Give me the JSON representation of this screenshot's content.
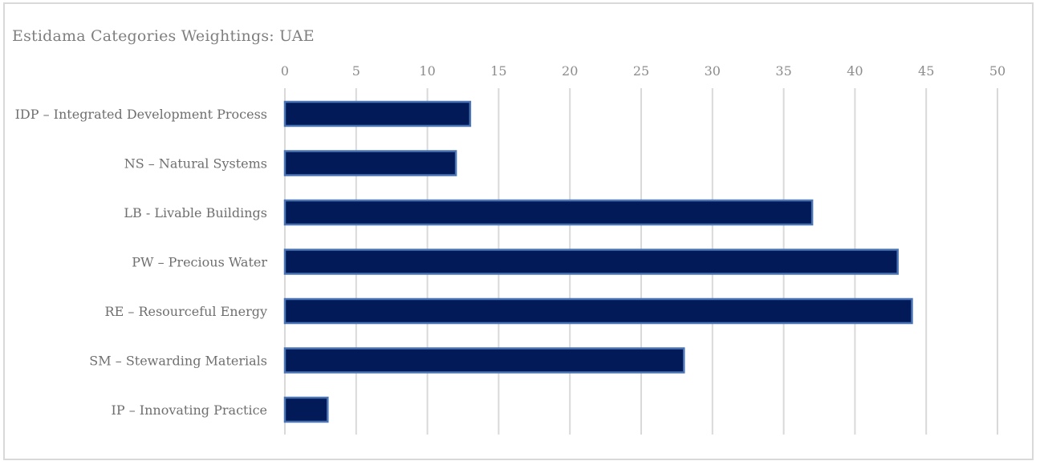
{
  "chart_data": {
    "type": "bar",
    "orientation": "horizontal",
    "title": "Estidama Categories Weightings: UAE",
    "categories": [
      "IDP – Integrated Development Process",
      "NS – Natural Systems",
      "LB - Livable Buildings",
      "PW – Precious Water",
      "RE – Resourceful Energy",
      "SM – Stewarding Materials",
      "IP – Innovating Practice"
    ],
    "values": [
      13,
      12,
      37,
      43,
      44,
      28,
      3
    ],
    "xlim": [
      0,
      50
    ],
    "x_ticks": [
      "0",
      "5",
      "10",
      "15",
      "20",
      "25",
      "30",
      "35",
      "40",
      "45",
      "50"
    ],
    "x_axis_position": "top",
    "grid": true,
    "legend": "none",
    "colors": {
      "bar_fill": "#021b58",
      "bar_edge": "#4a74b4",
      "grid": "#d9d9d9"
    }
  }
}
